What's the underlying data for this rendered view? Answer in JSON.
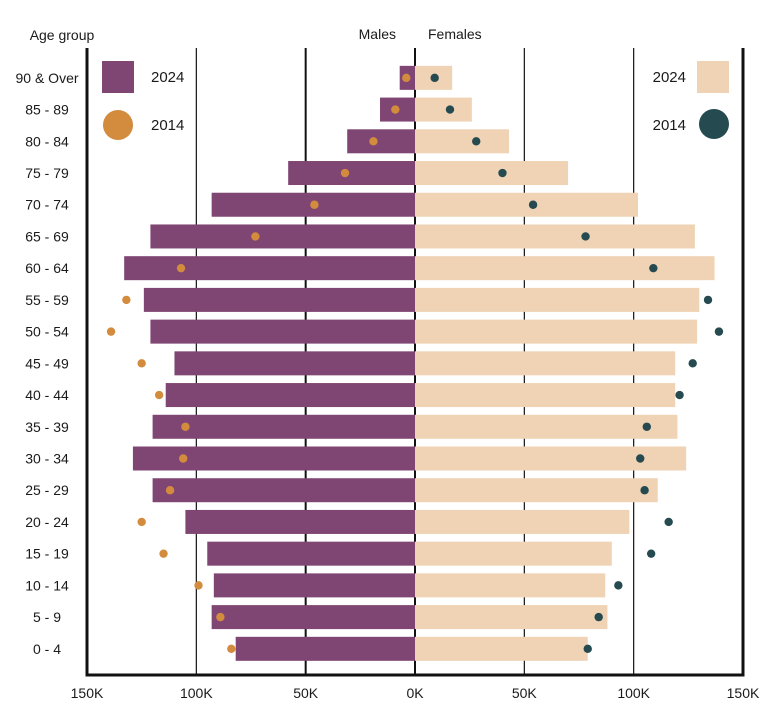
{
  "chart_data": {
    "type": "bar",
    "subtype": "population-pyramid",
    "y_title": "Age group",
    "left_header": "Males",
    "right_header": "Females",
    "categories": [
      "90 & Over",
      "85 - 89",
      "80 - 84",
      "75 - 79",
      "70 - 74",
      "65 - 69",
      "60 - 64",
      "55 - 59",
      "50 - 54",
      "45 - 49",
      "40 - 44",
      "35 - 39",
      "30 - 34",
      "25 - 29",
      "20 - 24",
      "15 - 19",
      "10 - 14",
      "5 - 9",
      "0 - 4"
    ],
    "x_ticks": [
      "150K",
      "100K",
      "50K",
      "0K",
      "50K",
      "100K",
      "150K"
    ],
    "xlim": [
      -150000,
      150000
    ],
    "series": [
      {
        "name": "2024",
        "sex": "Males",
        "mark": "bar",
        "color": "#7f4673",
        "values": [
          7000,
          16000,
          31000,
          58000,
          93000,
          121000,
          133000,
          124000,
          121000,
          110000,
          114000,
          120000,
          129000,
          120000,
          105000,
          95000,
          92000,
          93000,
          82000
        ]
      },
      {
        "name": "2014",
        "sex": "Males",
        "mark": "dot",
        "color": "#d38b3e",
        "values": [
          4000,
          9000,
          19000,
          32000,
          46000,
          73000,
          107000,
          132000,
          139000,
          125000,
          117000,
          105000,
          106000,
          112000,
          125000,
          115000,
          99000,
          89000,
          84000
        ]
      },
      {
        "name": "2024",
        "sex": "Females",
        "mark": "bar",
        "color": "#efd3b4",
        "values": [
          17000,
          26000,
          43000,
          70000,
          102000,
          128000,
          137000,
          130000,
          129000,
          119000,
          119000,
          120000,
          124000,
          111000,
          98000,
          90000,
          87000,
          88000,
          79000
        ]
      },
      {
        "name": "2014",
        "sex": "Females",
        "mark": "dot",
        "color": "#254a4f",
        "values": [
          9000,
          16000,
          28000,
          40000,
          54000,
          78000,
          109000,
          134000,
          139000,
          127000,
          121000,
          106000,
          103000,
          105000,
          116000,
          108000,
          93000,
          84000,
          79000
        ]
      }
    ]
  },
  "legend": {
    "left": [
      {
        "label": "2024"
      },
      {
        "label": "2014"
      }
    ],
    "right": [
      {
        "label": "2024"
      },
      {
        "label": "2014"
      }
    ]
  }
}
